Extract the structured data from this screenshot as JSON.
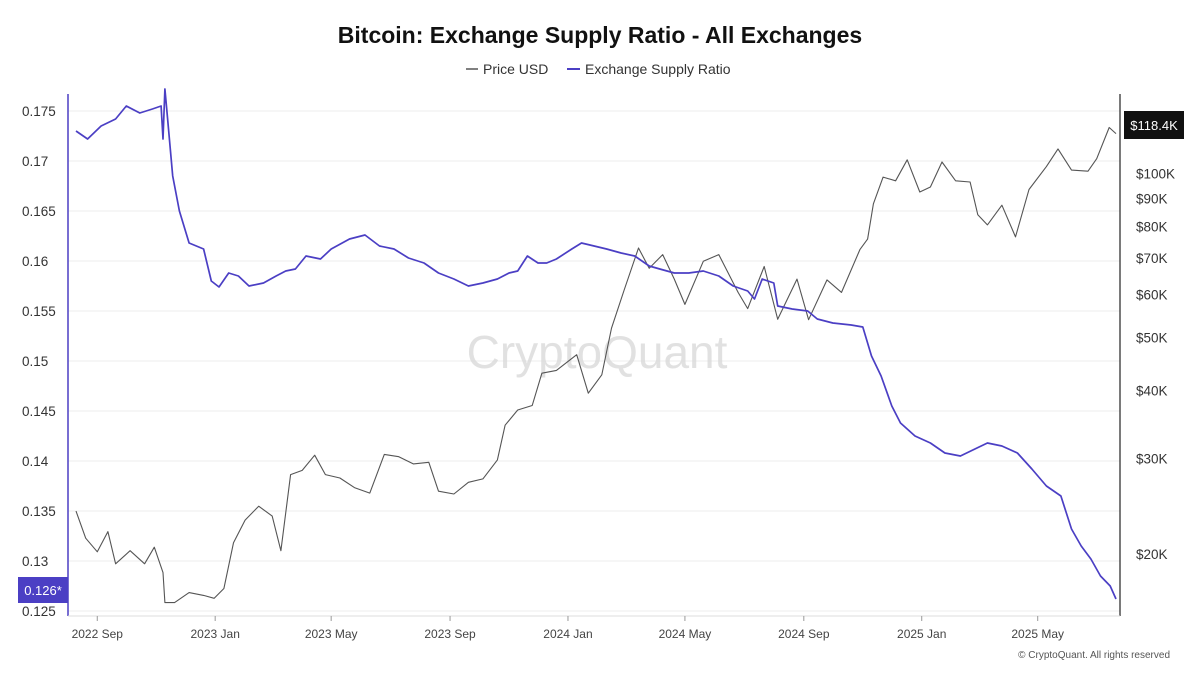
{
  "chart_data": {
    "type": "line",
    "title": "Bitcoin: Exchange Supply Ratio - All Exchanges",
    "legend": {
      "placement": "top-center",
      "entries": [
        {
          "name": "Price USD",
          "color": "#555555"
        },
        {
          "name": "Exchange Supply Ratio",
          "color": "#4b3fc4"
        }
      ]
    },
    "x_axis": {
      "type": "date",
      "range": [
        "2022-08-10",
        "2025-07-21"
      ],
      "ticks": [
        {
          "date": "2022-09-01",
          "label": "2022 Sep"
        },
        {
          "date": "2023-01-01",
          "label": "2023 Jan"
        },
        {
          "date": "2023-05-01",
          "label": "2023 May"
        },
        {
          "date": "2023-09-01",
          "label": "2023 Sep"
        },
        {
          "date": "2024-01-01",
          "label": "2024 Jan"
        },
        {
          "date": "2024-05-01",
          "label": "2024 May"
        },
        {
          "date": "2024-09-01",
          "label": "2024 Sep"
        },
        {
          "date": "2025-01-01",
          "label": "2025 Jan"
        },
        {
          "date": "2025-05-01",
          "label": "2025 May"
        }
      ]
    },
    "y_axis_left": {
      "scale": "linear",
      "range": [
        0.1245,
        0.1767
      ],
      "ticks": [
        {
          "value": 0.125,
          "label": "0.125"
        },
        {
          "value": 0.13,
          "label": "0.13"
        },
        {
          "value": 0.135,
          "label": "0.135"
        },
        {
          "value": 0.14,
          "label": "0.14"
        },
        {
          "value": 0.145,
          "label": "0.145"
        },
        {
          "value": 0.15,
          "label": "0.15"
        },
        {
          "value": 0.155,
          "label": "0.155"
        },
        {
          "value": 0.16,
          "label": "0.16"
        },
        {
          "value": 0.165,
          "label": "0.165"
        },
        {
          "value": 0.17,
          "label": "0.17"
        },
        {
          "value": 0.175,
          "label": "0.175"
        }
      ],
      "current_value_label": "0.126*"
    },
    "y_axis_right": {
      "scale": "log",
      "range": [
        15400,
        140000
      ],
      "ticks": [
        {
          "value": 20000,
          "label": "$20K"
        },
        {
          "value": 30000,
          "label": "$30K"
        },
        {
          "value": 40000,
          "label": "$40K"
        },
        {
          "value": 50000,
          "label": "$50K"
        },
        {
          "value": 60000,
          "label": "$60K"
        },
        {
          "value": 70000,
          "label": "$70K"
        },
        {
          "value": 80000,
          "label": "$80K"
        },
        {
          "value": 90000,
          "label": "$90K"
        },
        {
          "value": 100000,
          "label": "$100K"
        }
      ],
      "current_value_label": "$118.4K"
    },
    "grid": true,
    "series": [
      {
        "name": "Exchange Supply Ratio",
        "axis": "left",
        "color": "#4b3fc4",
        "points": [
          [
            "2022-08-10",
            0.173
          ],
          [
            "2022-08-22",
            0.1722
          ],
          [
            "2022-09-05",
            0.1735
          ],
          [
            "2022-09-20",
            0.1742
          ],
          [
            "2022-10-01",
            0.1755
          ],
          [
            "2022-10-15",
            0.1748
          ],
          [
            "2022-10-28",
            0.1752
          ],
          [
            "2022-11-06",
            0.1755
          ],
          [
            "2022-11-08",
            0.1722
          ],
          [
            "2022-11-10",
            0.1772
          ],
          [
            "2022-11-13",
            0.174
          ],
          [
            "2022-11-18",
            0.1685
          ],
          [
            "2022-11-25",
            0.165
          ],
          [
            "2022-12-05",
            0.1618
          ],
          [
            "2022-12-20",
            0.1612
          ],
          [
            "2022-12-28",
            0.158
          ],
          [
            "2023-01-05",
            0.1574
          ],
          [
            "2023-01-15",
            0.1588
          ],
          [
            "2023-01-25",
            0.1585
          ],
          [
            "2023-02-05",
            0.1575
          ],
          [
            "2023-02-20",
            0.1578
          ],
          [
            "2023-03-05",
            0.1585
          ],
          [
            "2023-03-15",
            0.159
          ],
          [
            "2023-03-25",
            0.1592
          ],
          [
            "2023-04-05",
            0.1605
          ],
          [
            "2023-04-20",
            0.1602
          ],
          [
            "2023-05-01",
            0.1612
          ],
          [
            "2023-05-20",
            0.1622
          ],
          [
            "2023-06-05",
            0.1626
          ],
          [
            "2023-06-20",
            0.1615
          ],
          [
            "2023-07-05",
            0.1612
          ],
          [
            "2023-07-20",
            0.1603
          ],
          [
            "2023-08-05",
            0.1598
          ],
          [
            "2023-08-20",
            0.1588
          ],
          [
            "2023-09-05",
            0.1582
          ],
          [
            "2023-09-20",
            0.1575
          ],
          [
            "2023-10-05",
            0.1578
          ],
          [
            "2023-10-20",
            0.1582
          ],
          [
            "2023-11-01",
            0.1588
          ],
          [
            "2023-11-10",
            0.159
          ],
          [
            "2023-11-20",
            0.1605
          ],
          [
            "2023-12-01",
            0.1598
          ],
          [
            "2023-12-10",
            0.1598
          ],
          [
            "2023-12-20",
            0.1602
          ],
          [
            "2024-01-05",
            0.1612
          ],
          [
            "2024-01-15",
            0.1618
          ],
          [
            "2024-01-28",
            0.1615
          ],
          [
            "2024-02-10",
            0.1612
          ],
          [
            "2024-02-25",
            0.1608
          ],
          [
            "2024-03-10",
            0.1605
          ],
          [
            "2024-03-25",
            0.1595
          ],
          [
            "2024-04-05",
            0.1592
          ],
          [
            "2024-04-20",
            0.1588
          ],
          [
            "2024-05-05",
            0.1588
          ],
          [
            "2024-05-20",
            0.159
          ],
          [
            "2024-06-05",
            0.1585
          ],
          [
            "2024-06-20",
            0.1575
          ],
          [
            "2024-07-05",
            0.157
          ],
          [
            "2024-07-12",
            0.1562
          ],
          [
            "2024-07-20",
            0.1582
          ],
          [
            "2024-08-01",
            0.1578
          ],
          [
            "2024-08-05",
            0.1555
          ],
          [
            "2024-08-20",
            0.1552
          ],
          [
            "2024-09-05",
            0.155
          ],
          [
            "2024-09-15",
            0.1542
          ],
          [
            "2024-10-01",
            0.1538
          ],
          [
            "2024-10-20",
            0.1536
          ],
          [
            "2024-11-01",
            0.1534
          ],
          [
            "2024-11-10",
            0.1505
          ],
          [
            "2024-11-20",
            0.1485
          ],
          [
            "2024-12-01",
            0.1455
          ],
          [
            "2024-12-10",
            0.1438
          ],
          [
            "2024-12-25",
            0.1425
          ],
          [
            "2025-01-10",
            0.1418
          ],
          [
            "2025-01-25",
            0.1408
          ],
          [
            "2025-02-10",
            0.1405
          ],
          [
            "2025-02-25",
            0.1412
          ],
          [
            "2025-03-10",
            0.1418
          ],
          [
            "2025-03-25",
            0.1415
          ],
          [
            "2025-04-10",
            0.1408
          ],
          [
            "2025-04-25",
            0.1392
          ],
          [
            "2025-05-10",
            0.1375
          ],
          [
            "2025-05-25",
            0.1365
          ],
          [
            "2025-06-05",
            0.1332
          ],
          [
            "2025-06-15",
            0.1315
          ],
          [
            "2025-06-25",
            0.1302
          ],
          [
            "2025-07-05",
            0.1285
          ],
          [
            "2025-07-15",
            0.1275
          ],
          [
            "2025-07-21",
            0.1262
          ]
        ]
      },
      {
        "name": "Price USD",
        "axis": "right",
        "color": "#555555",
        "points": [
          [
            "2022-08-10",
            24000
          ],
          [
            "2022-08-20",
            21400
          ],
          [
            "2022-09-01",
            20200
          ],
          [
            "2022-09-12",
            22000
          ],
          [
            "2022-09-20",
            19200
          ],
          [
            "2022-10-05",
            20300
          ],
          [
            "2022-10-20",
            19200
          ],
          [
            "2022-10-30",
            20600
          ],
          [
            "2022-11-08",
            18500
          ],
          [
            "2022-11-10",
            16300
          ],
          [
            "2022-11-20",
            16300
          ],
          [
            "2022-12-05",
            17000
          ],
          [
            "2022-12-20",
            16800
          ],
          [
            "2022-12-31",
            16600
          ],
          [
            "2023-01-10",
            17300
          ],
          [
            "2023-01-20",
            21000
          ],
          [
            "2023-02-01",
            23100
          ],
          [
            "2023-02-15",
            24500
          ],
          [
            "2023-03-01",
            23500
          ],
          [
            "2023-03-10",
            20300
          ],
          [
            "2023-03-20",
            28000
          ],
          [
            "2023-04-01",
            28500
          ],
          [
            "2023-04-14",
            30400
          ],
          [
            "2023-04-25",
            28000
          ],
          [
            "2023-05-10",
            27600
          ],
          [
            "2023-05-25",
            26500
          ],
          [
            "2023-06-10",
            25900
          ],
          [
            "2023-06-25",
            30500
          ],
          [
            "2023-07-10",
            30200
          ],
          [
            "2023-07-25",
            29300
          ],
          [
            "2023-08-10",
            29500
          ],
          [
            "2023-08-20",
            26100
          ],
          [
            "2023-09-05",
            25800
          ],
          [
            "2023-09-20",
            27100
          ],
          [
            "2023-10-05",
            27500
          ],
          [
            "2023-10-20",
            29800
          ],
          [
            "2023-10-28",
            34500
          ],
          [
            "2023-11-10",
            36800
          ],
          [
            "2023-11-25",
            37500
          ],
          [
            "2023-12-05",
            43000
          ],
          [
            "2023-12-20",
            43500
          ],
          [
            "2024-01-10",
            46500
          ],
          [
            "2024-01-22",
            39500
          ],
          [
            "2024-02-05",
            42700
          ],
          [
            "2024-02-15",
            52000
          ],
          [
            "2024-02-28",
            61000
          ],
          [
            "2024-03-14",
            73000
          ],
          [
            "2024-03-25",
            67000
          ],
          [
            "2024-04-08",
            71000
          ],
          [
            "2024-04-20",
            64000
          ],
          [
            "2024-05-01",
            57500
          ],
          [
            "2024-05-20",
            69000
          ],
          [
            "2024-06-05",
            71000
          ],
          [
            "2024-06-25",
            60500
          ],
          [
            "2024-07-05",
            56500
          ],
          [
            "2024-07-22",
            67500
          ],
          [
            "2024-08-05",
            54000
          ],
          [
            "2024-08-25",
            64000
          ],
          [
            "2024-09-06",
            53900
          ],
          [
            "2024-09-25",
            63800
          ],
          [
            "2024-10-10",
            60500
          ],
          [
            "2024-10-29",
            72500
          ],
          [
            "2024-11-06",
            75800
          ],
          [
            "2024-11-12",
            88000
          ],
          [
            "2024-11-22",
            98500
          ],
          [
            "2024-12-05",
            97000
          ],
          [
            "2024-12-17",
            106000
          ],
          [
            "2024-12-30",
            92500
          ],
          [
            "2025-01-10",
            94500
          ],
          [
            "2025-01-22",
            105000
          ],
          [
            "2025-02-05",
            97000
          ],
          [
            "2025-02-20",
            96500
          ],
          [
            "2025-02-28",
            84000
          ],
          [
            "2025-03-10",
            80500
          ],
          [
            "2025-03-25",
            87500
          ],
          [
            "2025-04-08",
            76500
          ],
          [
            "2025-04-22",
            93500
          ],
          [
            "2025-05-10",
            103000
          ],
          [
            "2025-05-22",
            111000
          ],
          [
            "2025-06-05",
            101500
          ],
          [
            "2025-06-22",
            101000
          ],
          [
            "2025-07-01",
            106500
          ],
          [
            "2025-07-14",
            121500
          ],
          [
            "2025-07-21",
            118400
          ]
        ]
      }
    ],
    "watermark": "CryptoQuant",
    "footer": "© CryptoQuant. All rights reserved"
  }
}
